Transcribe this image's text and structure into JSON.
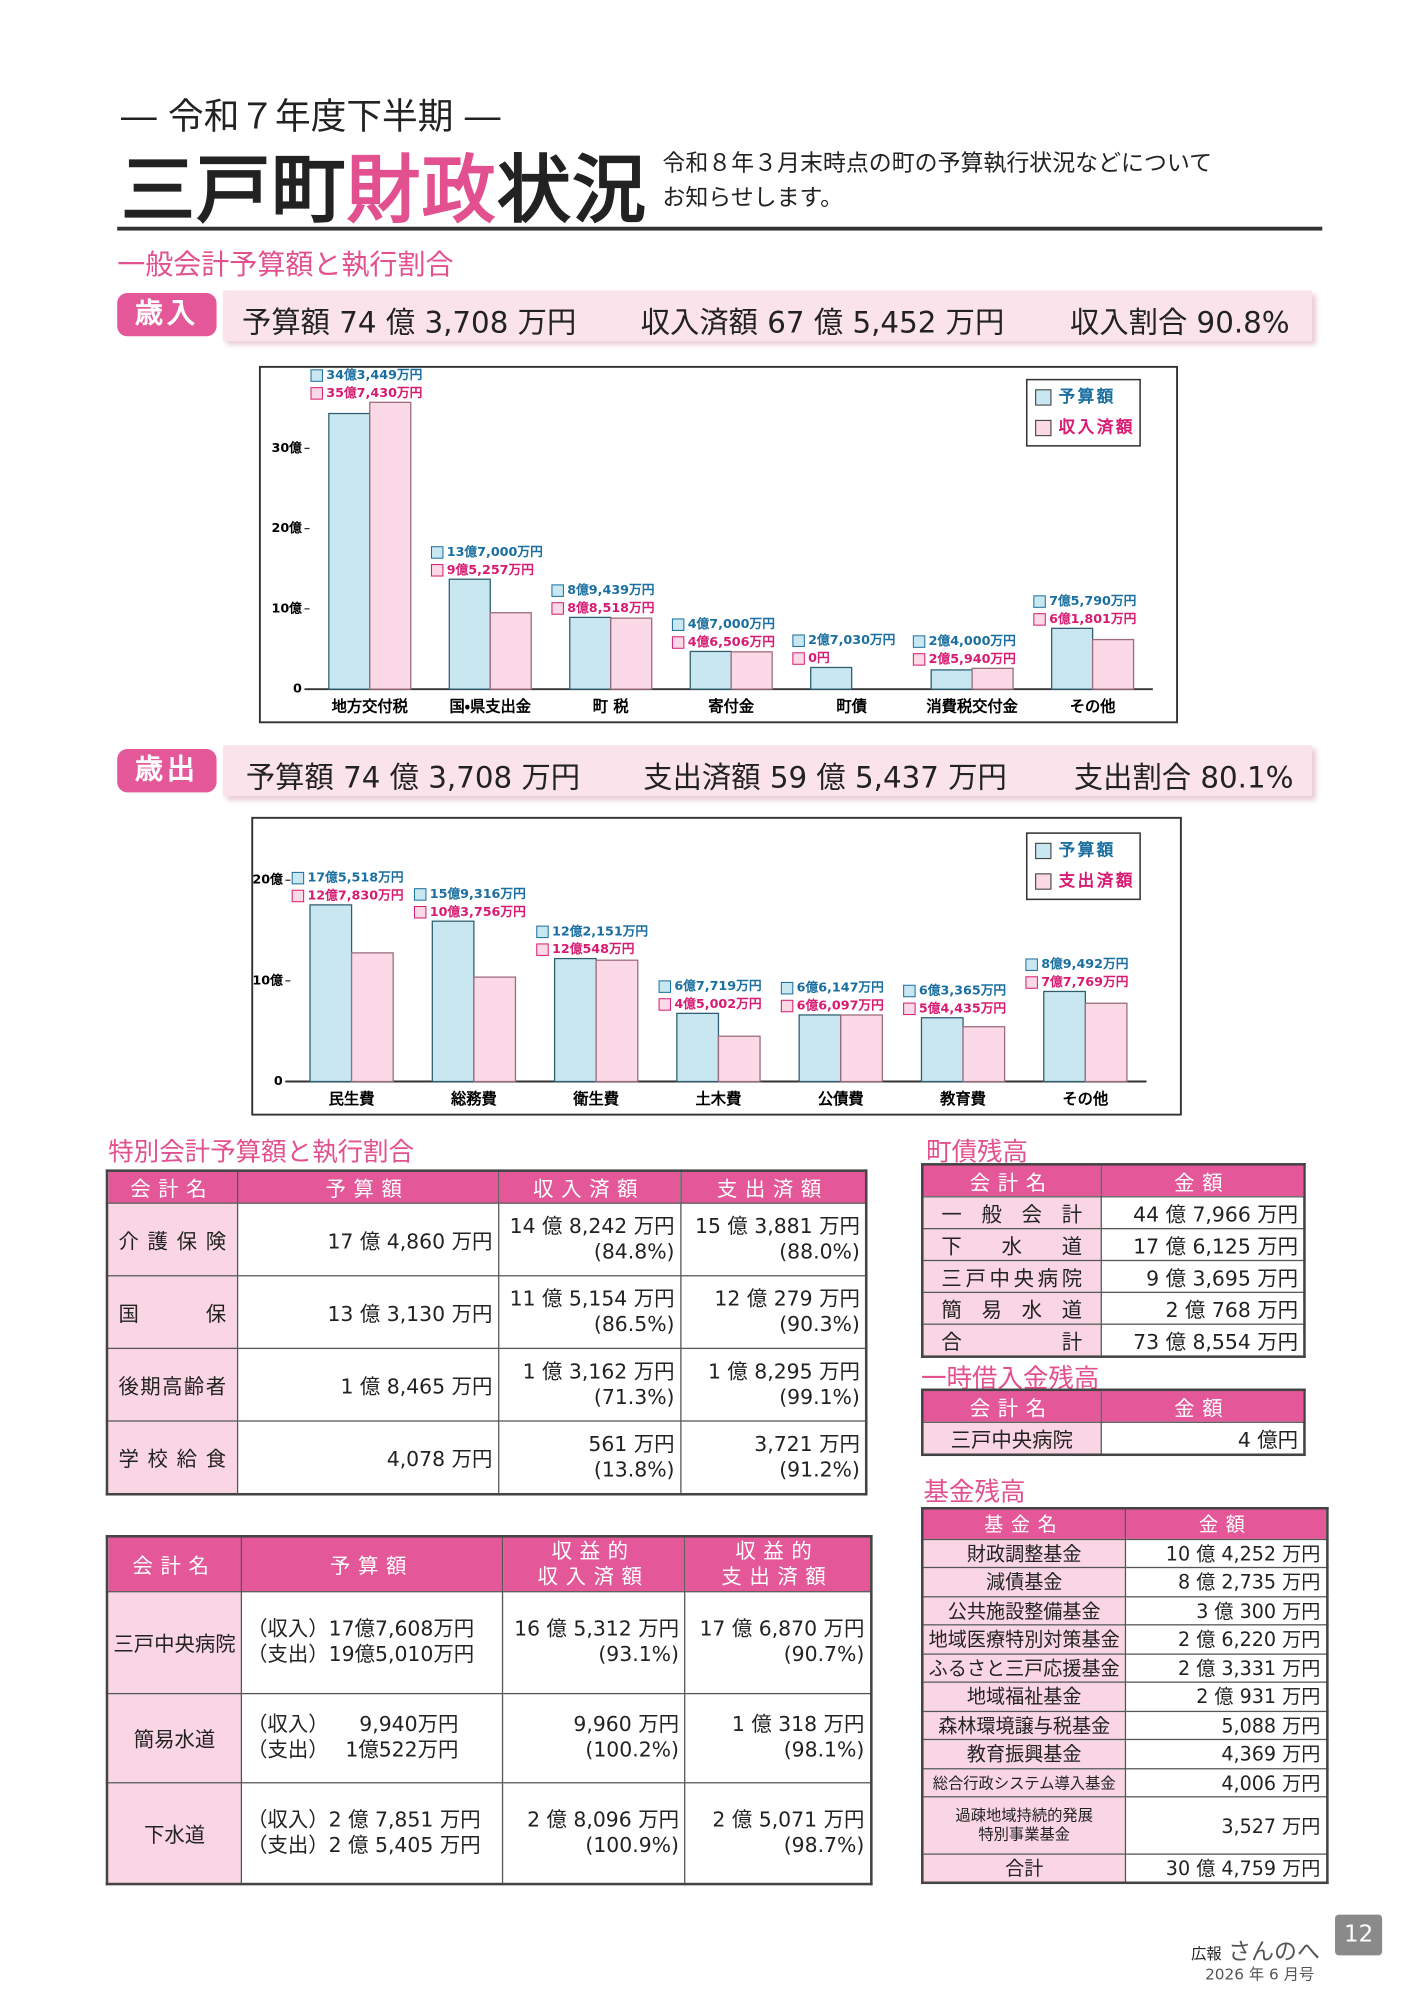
{
  "header": {
    "kicker": "― 令和７年度下半期 ―",
    "title_parts": [
      "三戸町",
      "財政",
      "状況"
    ],
    "subtitle_lines": [
      "令和８年３月末時点の町の予算執行状況などについて",
      "お知らせします。"
    ]
  },
  "general_account_title": "一般会計予算額と執行割合",
  "revenue": {
    "badge": "歳入",
    "items": [
      "予算額 74 億 3,708 万円",
      "収入済額 67 億 5,452 万円",
      "収入割合 90.8%"
    ]
  },
  "expenditure": {
    "badge": "歳出",
    "items": [
      "予算額 74 億 3,708 万円",
      "支出済額 59 億 5,437 万円",
      "支出割合 80.1%"
    ]
  },
  "chart_data": [
    {
      "type": "bar",
      "categories": [
        "地方交付税",
        "国・県支出金",
        "町 税",
        "寄付金",
        "町債",
        "消費税交付金",
        "その他"
      ],
      "series": [
        {
          "name": "予算額",
          "color": "#c9e7f1",
          "values": [
            34.3449,
            13.7,
            8.9439,
            4.7,
            2.703,
            2.4,
            7.579
          ],
          "value_labels": [
            "34億3,449万円",
            "13億7,000万円",
            "8億9,439万円",
            "4億7,000万円",
            "2億7,030万円",
            "2億4,000万円",
            "7億5,790万円"
          ]
        },
        {
          "name": "収入済額",
          "color": "#fbd9e6",
          "values": [
            35.743,
            9.5257,
            8.8518,
            4.6506,
            0,
            2.594,
            6.1801
          ],
          "value_labels": [
            "35億7,430万円",
            "9億5,257万円",
            "8億8,518万円",
            "4億6,506万円",
            "0円",
            "2億5,940万円",
            "6億1,801万円"
          ]
        }
      ],
      "ylim": [
        0,
        40
      ],
      "yticks": [
        0,
        {
          "value": 10,
          "label": "10億"
        },
        {
          "value": 20,
          "label": "20億"
        },
        {
          "value": 30,
          "label": "30億"
        }
      ],
      "legend": "upper right"
    },
    {
      "type": "bar",
      "categories": [
        "民生費",
        "総務費",
        "衛生費",
        "土木費",
        "公債費",
        "教育費",
        "その他"
      ],
      "series": [
        {
          "name": "予算額",
          "color": "#c9e7f1",
          "values": [
            17.5518,
            15.9316,
            12.2151,
            6.7719,
            6.6147,
            6.3365,
            8.9492
          ],
          "value_labels": [
            "17億5,518万円",
            "15億9,316万円",
            "12億2,151万円",
            "6億7,719万円",
            "6億6,147万円",
            "6億3,365万円",
            "8億9,492万円"
          ]
        },
        {
          "name": "支出済額",
          "color": "#fbd9e6",
          "values": [
            12.783,
            10.3756,
            12.0548,
            4.5002,
            6.6097,
            5.4435,
            7.7769
          ],
          "value_labels": [
            "12億7,830万円",
            "10億3,756万円",
            "12億548万円",
            "4億5,002万円",
            "6億6,097万円",
            "5億4,435万円",
            "7億7,769万円"
          ]
        }
      ],
      "ylim": [
        0,
        25
      ],
      "yticks": [
        0,
        {
          "value": 10,
          "label": "10億"
        },
        {
          "value": 20,
          "label": "20億"
        }
      ],
      "legend": "upper right"
    }
  ],
  "special_accounts": {
    "title": "特別会計予算額と執行割合",
    "header": [
      "会計名",
      "予算額",
      "収入済額",
      "支出済額"
    ],
    "rows": [
      [
        "介護保険",
        "17 億 4,860 万円",
        [
          "14 億 8,242 万円",
          "(84.8%)"
        ],
        [
          "15 億 3,881 万円",
          "(88.0%)"
        ]
      ],
      [
        "国保",
        "13 億 3,130 万円",
        [
          "11 億 5,154 万円",
          "(86.5%)"
        ],
        [
          "12 億 279 万円",
          "(90.3%)"
        ]
      ],
      [
        "後期高齢者",
        "1 億 8,465 万円",
        [
          "1 億 3,162 万円",
          "(71.3%)"
        ],
        [
          "1 億 8,295 万円",
          "(99.1%)"
        ]
      ],
      [
        "学校給食",
        "4,078 万円",
        [
          "561 万円",
          "(13.8%)"
        ],
        [
          "3,721 万円",
          "(91.2%)"
        ]
      ]
    ]
  },
  "enterprise_accounts": {
    "header": [
      "会計名",
      "予算額",
      [
        "収益的",
        "収入済額"
      ],
      [
        "収益的",
        "支出済額"
      ]
    ],
    "rows": [
      [
        "三戸中央病院",
        [
          "（収入）17億7,608万円",
          "（支出）19億5,010万円"
        ],
        [
          "16 億 5,312 万円",
          "(93.1%)"
        ],
        [
          "17 億 6,870 万円",
          "(90.7%)"
        ]
      ],
      [
        "簡易水道",
        [
          "（収入）　　9,940万円",
          "（支出）　 1億522万円"
        ],
        [
          "9,960 万円",
          "(100.2%)"
        ],
        [
          "1 億 318 万円",
          "(98.1%)"
        ]
      ],
      [
        "下水道",
        [
          "（収入）2 億 7,851 万円",
          "（支出）2 億 5,405 万円"
        ],
        [
          "2 億 8,096 万円",
          "(100.9%)"
        ],
        [
          "2 億 5,071 万円",
          "(98.7%)"
        ]
      ]
    ]
  },
  "town_debt": {
    "title": "町債残高",
    "header": [
      "会計名",
      "金額"
    ],
    "rows": [
      [
        "一般会計",
        "44 億 7,966 万円"
      ],
      [
        "下水道",
        "17 億 6,125 万円"
      ],
      [
        "三戸中央病院",
        "9 億 3,695 万円"
      ],
      [
        "簡易水道",
        "2 億 768 万円"
      ],
      [
        "合計",
        "73 億 8,554 万円"
      ]
    ]
  },
  "temporary_loans": {
    "title": "一時借入金残高",
    "header": [
      "会計名",
      "金額"
    ],
    "rows": [
      [
        "三戸中央病院",
        "4 億円"
      ]
    ]
  },
  "funds": {
    "title": "基金残高",
    "header": [
      "基金名",
      "金額"
    ],
    "rows": [
      [
        "財政調整基金",
        "10 億 4,252 万円"
      ],
      [
        "減債基金",
        "8 億 2,735 万円"
      ],
      [
        "公共施設整備基金",
        "3 億 300 万円"
      ],
      [
        "地域医療特別対策基金",
        "2 億 6,220 万円"
      ],
      [
        "ふるさと三戸応援基金",
        "2 億 3,331 万円"
      ],
      [
        "地域福祉基金",
        "2 億 931 万円"
      ],
      [
        "森林環境譲与税基金",
        "5,088 万円"
      ],
      [
        "教育振興基金",
        "4,369 万円"
      ],
      [
        "総合行政システム導入基金",
        "4,006 万円"
      ],
      [
        [
          "過疎地域持続的発展",
          "特別事業基金"
        ],
        "3,527 万円"
      ],
      [
        "合計",
        "30 億 4,759 万円"
      ]
    ]
  },
  "footer": {
    "label": "広報",
    "name": "さんのへ",
    "issue": "2026 年 6 月号",
    "page": "12"
  }
}
